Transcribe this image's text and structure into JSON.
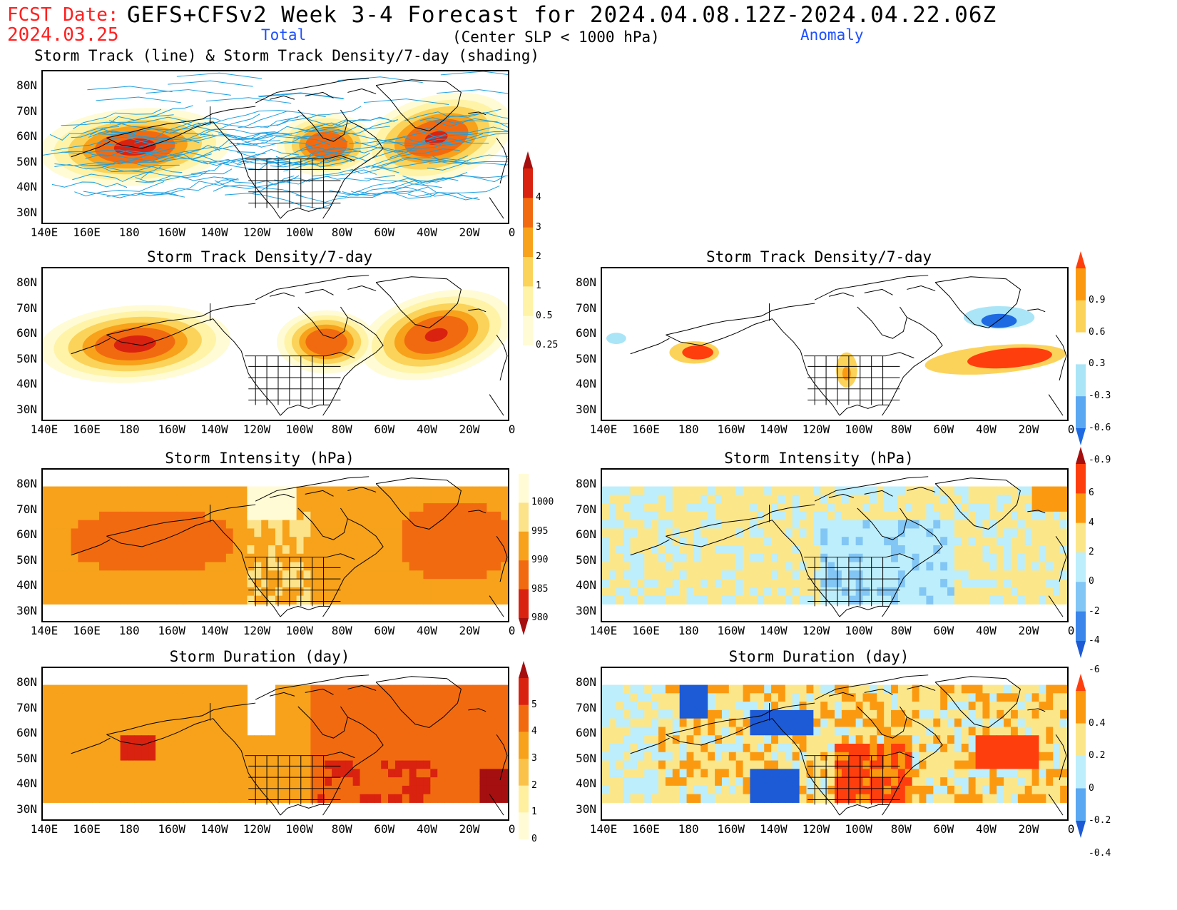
{
  "header": {
    "fcst_label": "FCST Date:",
    "fcst_date": "2024.03.25",
    "title": "GEFS+CFSv2 Week 3-4 Forecast for 2024.04.08.12Z-2024.04.22.06Z",
    "total_label": "Total",
    "criterion": "(Center SLP < 1000 hPa)",
    "anomaly_label": "Anomaly",
    "track_subtitle": "Storm Track (line) & Storm Track Density/7-day (shading)"
  },
  "axes": {
    "lat_labels": [
      "80N",
      "70N",
      "60N",
      "50N",
      "40N",
      "30N"
    ],
    "lon_labels": [
      "140E",
      "160E",
      "180",
      "160W",
      "140W",
      "120W",
      "100W",
      "80W",
      "60W",
      "40W",
      "20W",
      "0"
    ]
  },
  "panels": {
    "track": {
      "title": ""
    },
    "density_total": {
      "title": "Storm Track Density/7-day"
    },
    "density_anom": {
      "title": "Storm Track Density/7-day"
    },
    "intensity_total": {
      "title": "Storm Intensity (hPa)"
    },
    "intensity_anom": {
      "title": "Storm Intensity (hPa)"
    },
    "duration_total": {
      "title": "Storm Duration (day)"
    },
    "duration_anom": {
      "title": "Storm Duration (day)"
    }
  },
  "colorbars": {
    "density_total": {
      "labels": [
        "4",
        "3",
        "2",
        "1",
        "0.5",
        "0.25"
      ],
      "colors": [
        "#a50f0f",
        "#d9220f",
        "#f26a10",
        "#f7a21a",
        "#fbd35a",
        "#fff3a8",
        "#fffbd5"
      ]
    },
    "density_anom": {
      "labels": [
        "0.9",
        "0.6",
        "0.3",
        "-0.3",
        "-0.6",
        "-0.9"
      ],
      "colors": [
        "#ff3e0e",
        "#fb9a10",
        "#fcd35a",
        "#ffffff",
        "#a9e5f7",
        "#5aa7f2",
        "#1d6ae2"
      ]
    },
    "intensity_total": {
      "labels": [
        "1000",
        "995",
        "990",
        "985",
        "980"
      ],
      "colors": [
        "#fffbd5",
        "#fce38a",
        "#f7a21a",
        "#f26a10",
        "#d9220f",
        "#a50f0f"
      ]
    },
    "intensity_anom": {
      "labels": [
        "6",
        "4",
        "2",
        "0",
        "-2",
        "-4",
        "-6"
      ],
      "colors": [
        "#a50f0f",
        "#ff3e0e",
        "#fb9a10",
        "#fce68a",
        "#bdeefb",
        "#82c6f5",
        "#3a86ea",
        "#1d5ad6"
      ]
    },
    "duration_total": {
      "labels": [
        "5",
        "4",
        "3",
        "2",
        "1",
        "0"
      ],
      "colors": [
        "#a50f0f",
        "#d9220f",
        "#f26a10",
        "#f7a21a",
        "#fbc24a",
        "#fff0a0",
        "#fffbd5"
      ]
    },
    "duration_anom": {
      "labels": [
        "0.4",
        "0.2",
        "0",
        "-0.2",
        "-0.4"
      ],
      "colors": [
        "#ff3e0e",
        "#fb9a10",
        "#fce68a",
        "#bdeefb",
        "#5aa7f2",
        "#1d5ad6"
      ]
    }
  }
}
